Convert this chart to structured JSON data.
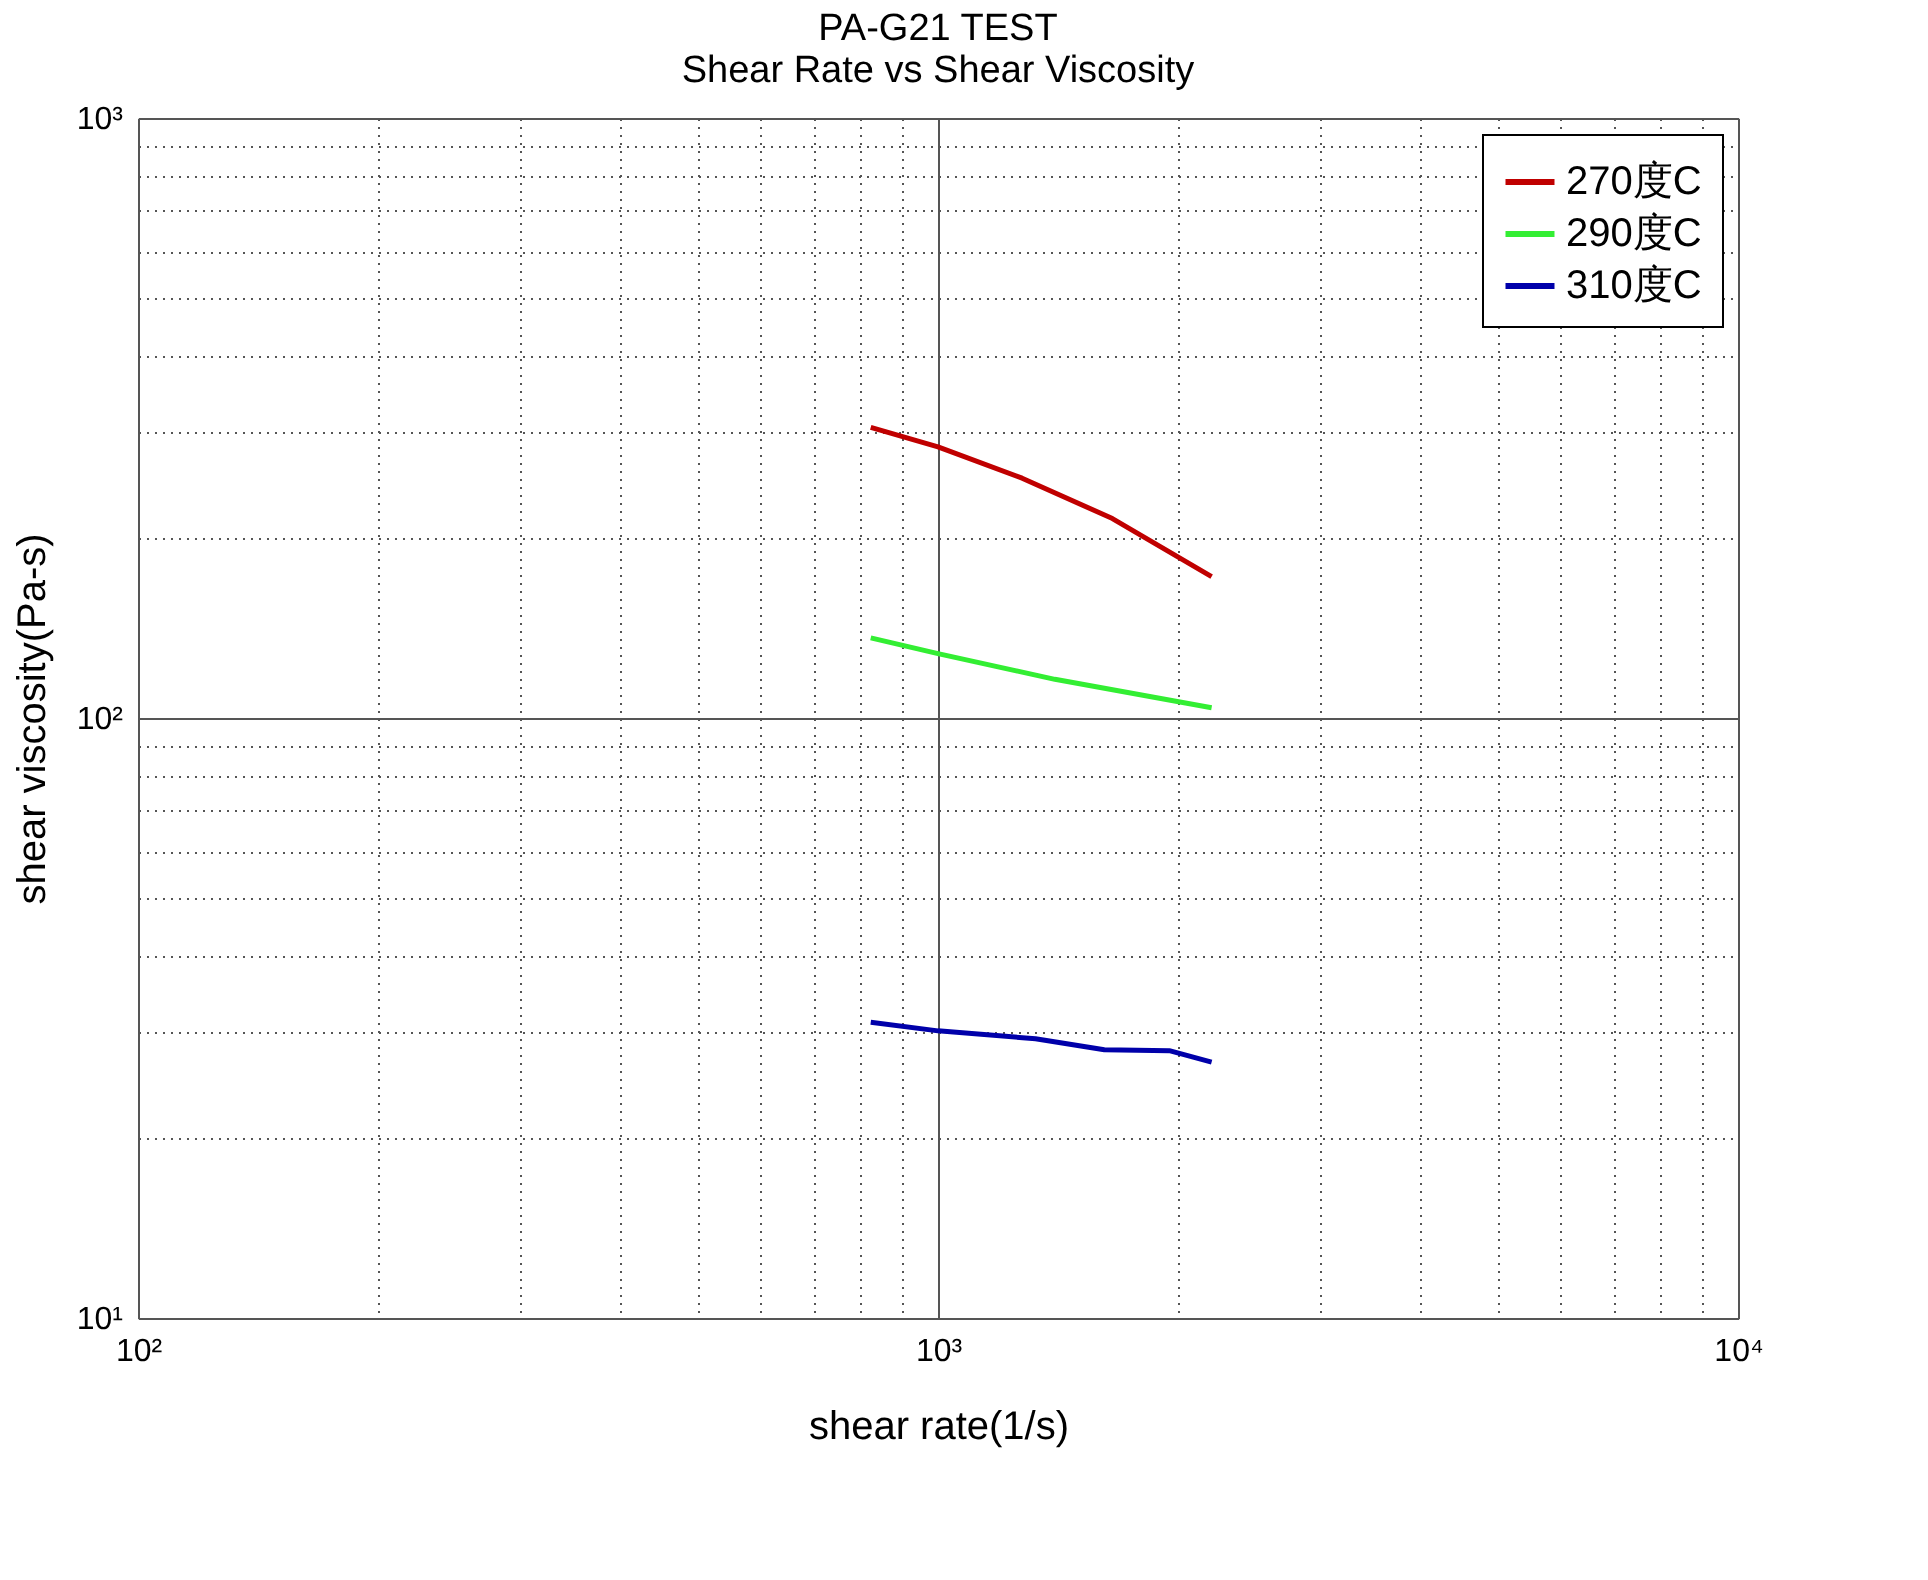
{
  "chart_data": {
    "type": "line",
    "title": [
      "PA-G21 TEST",
      "Shear Rate vs Shear Viscosity"
    ],
    "xlabel": "shear rate(1/s)",
    "ylabel": "shear viscosity(Pa-s)",
    "log": "xy",
    "grid": true,
    "legend": "top right",
    "line_style": "solid",
    "marker": "none",
    "xlim": [
      100,
      10000
    ],
    "ylim": [
      10,
      1000
    ],
    "xticks": [
      {
        "value": 100,
        "label": "10²"
      },
      {
        "value": 200,
        "label": null
      },
      {
        "value": 300,
        "label": null
      },
      {
        "value": 400,
        "label": null
      },
      {
        "value": 500,
        "label": null
      },
      {
        "value": 600,
        "label": null
      },
      {
        "value": 700,
        "label": null
      },
      {
        "value": 800,
        "label": null
      },
      {
        "value": 900,
        "label": null
      },
      {
        "value": 1000,
        "label": "10³"
      },
      {
        "value": 2000,
        "label": null
      },
      {
        "value": 3000,
        "label": null
      },
      {
        "value": 4000,
        "label": null
      },
      {
        "value": 5000,
        "label": null
      },
      {
        "value": 6000,
        "label": null
      },
      {
        "value": 7000,
        "label": null
      },
      {
        "value": 8000,
        "label": null
      },
      {
        "value": 9000,
        "label": null
      },
      {
        "value": 10000,
        "label": "10⁴"
      }
    ],
    "yticks": [
      {
        "value": 10,
        "label": "10¹"
      },
      {
        "value": 20,
        "label": null
      },
      {
        "value": 30,
        "label": null
      },
      {
        "value": 40,
        "label": null
      },
      {
        "value": 50,
        "label": null
      },
      {
        "value": 60,
        "label": null
      },
      {
        "value": 70,
        "label": null
      },
      {
        "value": 80,
        "label": null
      },
      {
        "value": 90,
        "label": null
      },
      {
        "value": 100,
        "label": "10²"
      },
      {
        "value": 200,
        "label": null
      },
      {
        "value": 300,
        "label": null
      },
      {
        "value": 400,
        "label": null
      },
      {
        "value": 500,
        "label": null
      },
      {
        "value": 600,
        "label": null
      },
      {
        "value": 700,
        "label": null
      },
      {
        "value": 800,
        "label": null
      },
      {
        "value": 900,
        "label": null
      },
      {
        "value": 1000,
        "label": "10³"
      }
    ],
    "series": [
      {
        "name": "270度C",
        "color": "#c00000",
        "x": [
          824,
          1000,
          1274,
          1652,
          2198
        ],
        "values": [
          305,
          283,
          251,
          215,
          172
        ]
      },
      {
        "name": "290度C",
        "color": "#33ee33",
        "x": [
          824,
          1000,
          1400,
          2198
        ],
        "values": [
          136,
          128,
          116,
          104
        ]
      },
      {
        "name": "310度C",
        "color": "#0000aa",
        "x": [
          824,
          1000,
          1324,
          1614,
          1946,
          2198
        ],
        "values": [
          31.1,
          30.1,
          29.2,
          28.0,
          27.9,
          26.7
        ]
      }
    ]
  }
}
